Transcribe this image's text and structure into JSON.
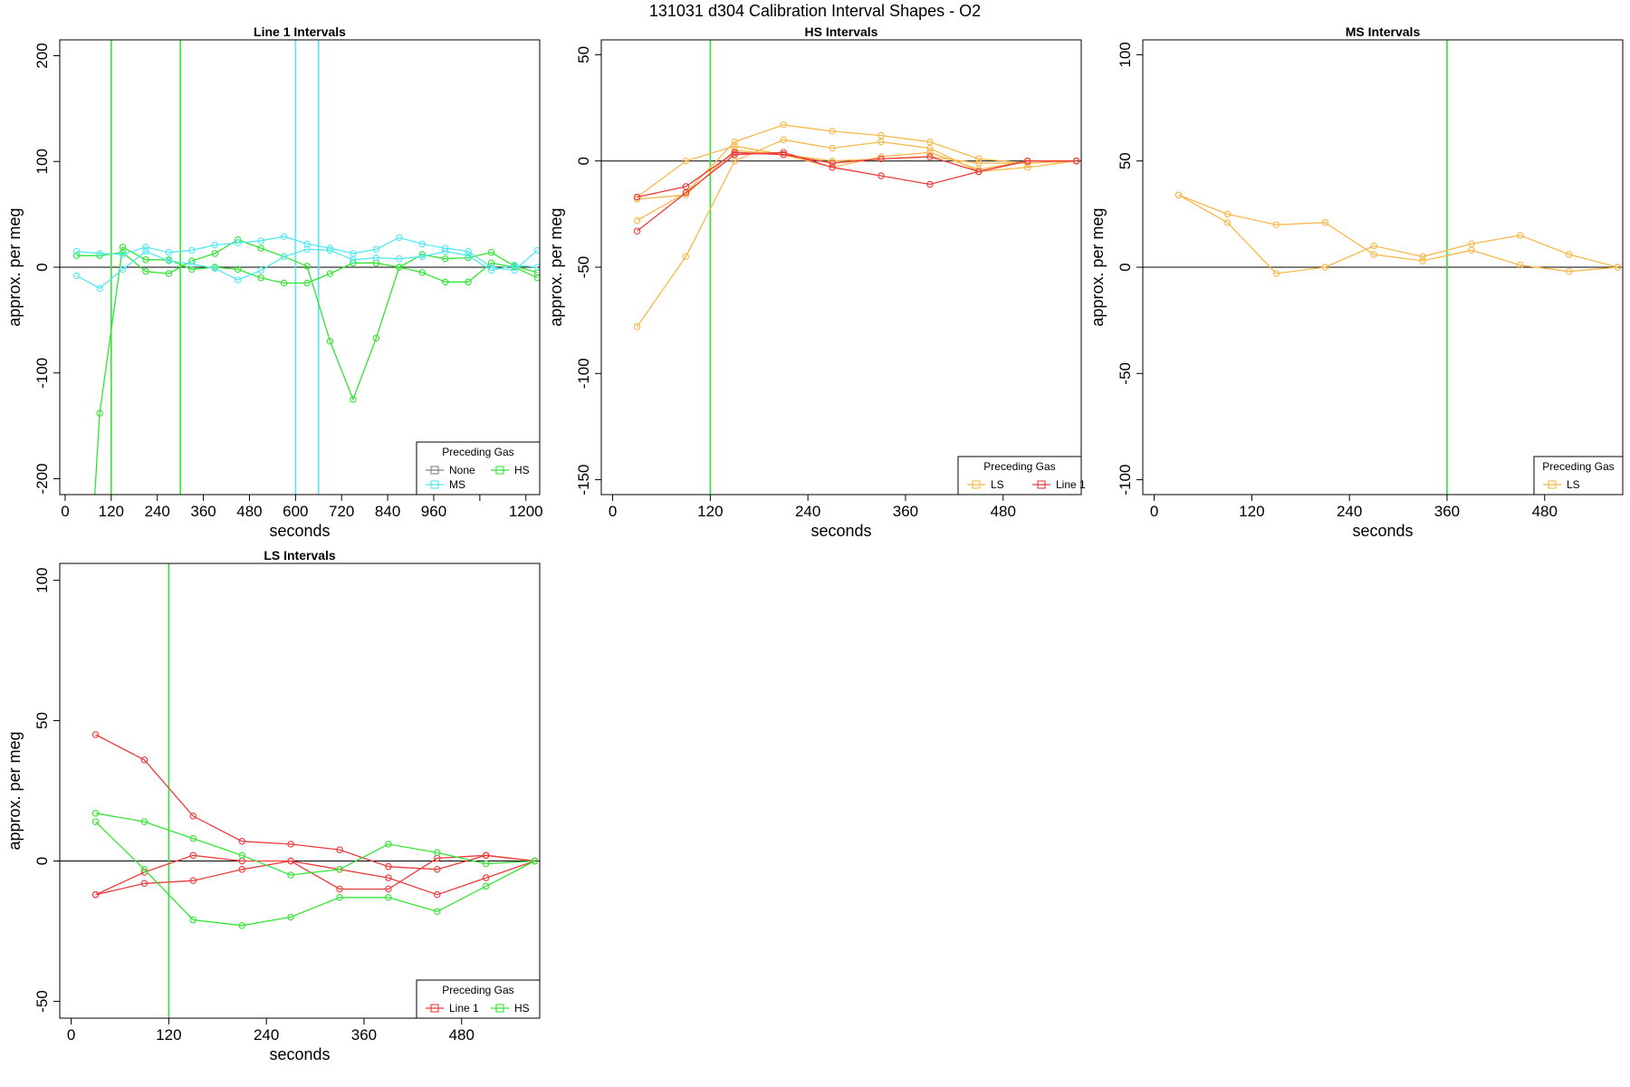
{
  "figure": {
    "title": "131031   d304   Calibration Interval Shapes - O2",
    "colors": {
      "None": "#808080",
      "HS": "#33e533",
      "MS": "#55e8f0",
      "LS": "#f8b84a",
      "Line 1": "#ec3b3b"
    }
  },
  "chart_data": [
    {
      "type": "line",
      "title": "Line 1 Intervals",
      "xlabel": "seconds",
      "ylabel": "approx. per meg",
      "xlim": [
        -14,
        1236
      ],
      "ylim": [
        -215,
        215
      ],
      "xticks": [
        0,
        120,
        240,
        360,
        480,
        600,
        720,
        840,
        960,
        1080,
        1200
      ],
      "xtick_labels": [
        "0",
        "120",
        "240",
        "360",
        "480",
        "600",
        "720",
        "840",
        "960",
        "",
        "1200"
      ],
      "yticks": [
        -200,
        -100,
        0,
        100,
        200
      ],
      "hlines": [
        0
      ],
      "vlines": [
        {
          "x": 120,
          "color": "HS"
        },
        {
          "x": 300,
          "color": "HS"
        },
        {
          "x": 600,
          "color": "MS"
        },
        {
          "x": 660,
          "color": "MS"
        }
      ],
      "legend": {
        "title": "Preceding Gas",
        "position": "bottom-right",
        "entries": [
          "None",
          "HS",
          "MS"
        ]
      },
      "series": [
        {
          "group": "HS",
          "x": [
            30,
            90,
            150,
            210,
            270,
            330,
            390,
            450,
            510,
            570,
            630,
            690,
            750,
            810,
            870,
            930,
            990,
            1050,
            1110,
            1170,
            1230
          ],
          "y": [
            -500,
            -138,
            19,
            7,
            7,
            -2,
            0,
            -2,
            -10,
            -15,
            -15,
            -6,
            4,
            4,
            0,
            -5,
            -14,
            -14,
            4,
            0,
            -10
          ]
        },
        {
          "group": "HS",
          "x": [
            30,
            90,
            150,
            210,
            270,
            330,
            390,
            450,
            510,
            570,
            630,
            690,
            750,
            810,
            870,
            930,
            990,
            1050,
            1110,
            1170,
            1230
          ],
          "y": [
            11,
            11,
            14,
            -4,
            -6,
            6,
            13,
            26,
            18,
            10,
            1,
            -70,
            -125,
            -67,
            0,
            12,
            8,
            9,
            14,
            1,
            -5
          ]
        },
        {
          "group": "MS",
          "x": [
            30,
            90,
            150,
            210,
            270,
            330,
            390,
            450,
            510,
            570,
            630,
            690,
            750,
            810,
            870,
            930,
            990,
            1050,
            1110,
            1170,
            1230
          ],
          "y": [
            15,
            13,
            12,
            19,
            14,
            16,
            21,
            23,
            25,
            29,
            22,
            18,
            13,
            17,
            28,
            22,
            18,
            15,
            0,
            -3,
            16
          ]
        },
        {
          "group": "MS",
          "x": [
            30,
            90,
            150,
            210,
            270,
            330,
            390,
            450,
            510,
            570,
            630,
            690,
            750,
            810,
            870,
            930,
            990,
            1050,
            1110,
            1170,
            1230
          ],
          "y": [
            -8,
            -20,
            -2,
            15,
            6,
            3,
            -1,
            -12,
            -3,
            10,
            17,
            16,
            7,
            9,
            8,
            10,
            15,
            11,
            -3,
            2,
            0
          ]
        }
      ]
    },
    {
      "type": "line",
      "title": "HS Intervals",
      "xlabel": "seconds",
      "ylabel": "approx. per meg",
      "xlim": [
        -14,
        576
      ],
      "ylim": [
        -157,
        57
      ],
      "xticks": [
        0,
        120,
        240,
        360,
        480
      ],
      "xtick_labels": [
        "0",
        "120",
        "240",
        "360",
        "480"
      ],
      "yticks": [
        -150,
        -100,
        -50,
        0,
        50
      ],
      "hlines": [
        0
      ],
      "vlines": [
        {
          "x": 120,
          "color": "HS"
        }
      ],
      "legend": {
        "title": "Preceding Gas",
        "position": "bottom-right",
        "entries": [
          "LS",
          "Line 1"
        ]
      },
      "series": [
        {
          "group": "LS",
          "x": [
            30,
            90,
            150,
            210,
            270,
            330,
            390,
            450,
            510,
            570
          ],
          "y": [
            -78,
            -45,
            0,
            10,
            6,
            9,
            6,
            -5,
            -3,
            0
          ]
        },
        {
          "group": "LS",
          "x": [
            30,
            90,
            150,
            210,
            270,
            330,
            390,
            450,
            510,
            570
          ],
          "y": [
            -28,
            -15,
            9,
            17,
            14,
            12,
            9,
            1,
            -1,
            0
          ]
        },
        {
          "group": "LS",
          "x": [
            30,
            90,
            150,
            210,
            270,
            330,
            390,
            450,
            510,
            570
          ],
          "y": [
            -17,
            0,
            7,
            3,
            0,
            1,
            2,
            -1,
            -1,
            0
          ]
        },
        {
          "group": "LS",
          "x": [
            30,
            90,
            150,
            210,
            270,
            330,
            390,
            450,
            510,
            570
          ],
          "y": [
            -18,
            -16,
            5,
            3,
            -3,
            2,
            4,
            -4,
            0,
            0
          ]
        },
        {
          "group": "Line 1",
          "x": [
            30,
            90,
            150,
            210,
            270,
            330,
            390,
            450,
            510,
            570
          ],
          "y": [
            -33,
            -15,
            3,
            4,
            -3,
            -7,
            -11,
            -5,
            0,
            0
          ]
        },
        {
          "group": "Line 1",
          "x": [
            30,
            90,
            150,
            210,
            270,
            330,
            390,
            450,
            510,
            570
          ],
          "y": [
            -17,
            -12,
            4,
            3,
            -1,
            1,
            2,
            -5,
            0,
            0
          ]
        }
      ]
    },
    {
      "type": "line",
      "title": "MS Intervals",
      "xlabel": "seconds",
      "ylabel": "approx. per meg",
      "xlim": [
        -14,
        576
      ],
      "ylim": [
        -107,
        107
      ],
      "xticks": [
        0,
        120,
        240,
        360,
        480
      ],
      "xtick_labels": [
        "0",
        "120",
        "240",
        "360",
        "480"
      ],
      "yticks": [
        -100,
        -50,
        0,
        50,
        100
      ],
      "hlines": [
        0
      ],
      "vlines": [
        {
          "x": 360,
          "color": "HS"
        }
      ],
      "legend": {
        "title": "Preceding Gas",
        "position": "bottom-right",
        "entries": [
          "LS"
        ]
      },
      "series": [
        {
          "group": "LS",
          "x": [
            30,
            90,
            150,
            210,
            270,
            330,
            390,
            450,
            510,
            570
          ],
          "y": [
            34,
            21,
            -3,
            0,
            10,
            5,
            11,
            15,
            6,
            0
          ]
        },
        {
          "group": "LS",
          "x": [
            30,
            90,
            150,
            210,
            270,
            330,
            390,
            450,
            510,
            570
          ],
          "y": [
            34,
            25,
            20,
            21,
            6,
            3,
            8,
            1,
            -2,
            0
          ]
        }
      ]
    },
    {
      "type": "line",
      "title": "LS Intervals",
      "xlabel": "seconds",
      "ylabel": "approx. per meg",
      "xlim": [
        -14,
        576
      ],
      "ylim": [
        -56,
        106
      ],
      "xticks": [
        0,
        120,
        240,
        360,
        480
      ],
      "xtick_labels": [
        "0",
        "120",
        "240",
        "360",
        "480"
      ],
      "yticks": [
        -50,
        0,
        50,
        100
      ],
      "hlines": [
        0
      ],
      "vlines": [
        {
          "x": 120,
          "color": "HS"
        }
      ],
      "legend": {
        "title": "Preceding Gas",
        "position": "bottom-right",
        "entries": [
          "Line 1",
          "HS"
        ]
      },
      "series": [
        {
          "group": "Line 1",
          "x": [
            30,
            90,
            150,
            210,
            270,
            330,
            390,
            450,
            510,
            570
          ],
          "y": [
            45,
            36,
            16,
            7,
            6,
            4,
            -2,
            -3,
            2,
            0
          ]
        },
        {
          "group": "Line 1",
          "x": [
            30,
            90,
            150,
            210,
            270,
            330,
            390,
            450,
            510,
            570
          ],
          "y": [
            -12,
            -4,
            2,
            0,
            0,
            -10,
            -10,
            1,
            2,
            0
          ]
        },
        {
          "group": "Line 1",
          "x": [
            30,
            90,
            150,
            210,
            270,
            330,
            390,
            450,
            510,
            570
          ],
          "y": [
            -12,
            -8,
            -7,
            -3,
            0,
            -3,
            -6,
            -12,
            -6,
            0
          ]
        },
        {
          "group": "HS",
          "x": [
            30,
            90,
            150,
            210,
            270,
            330,
            390,
            450,
            510,
            570
          ],
          "y": [
            17,
            14,
            8,
            2,
            -5,
            -3,
            6,
            3,
            -1,
            0
          ]
        },
        {
          "group": "HS",
          "x": [
            30,
            90,
            150,
            210,
            270,
            330,
            390,
            450,
            510,
            570
          ],
          "y": [
            14,
            -3,
            -21,
            -23,
            -20,
            -13,
            -13,
            -18,
            -9,
            0
          ]
        }
      ]
    }
  ]
}
